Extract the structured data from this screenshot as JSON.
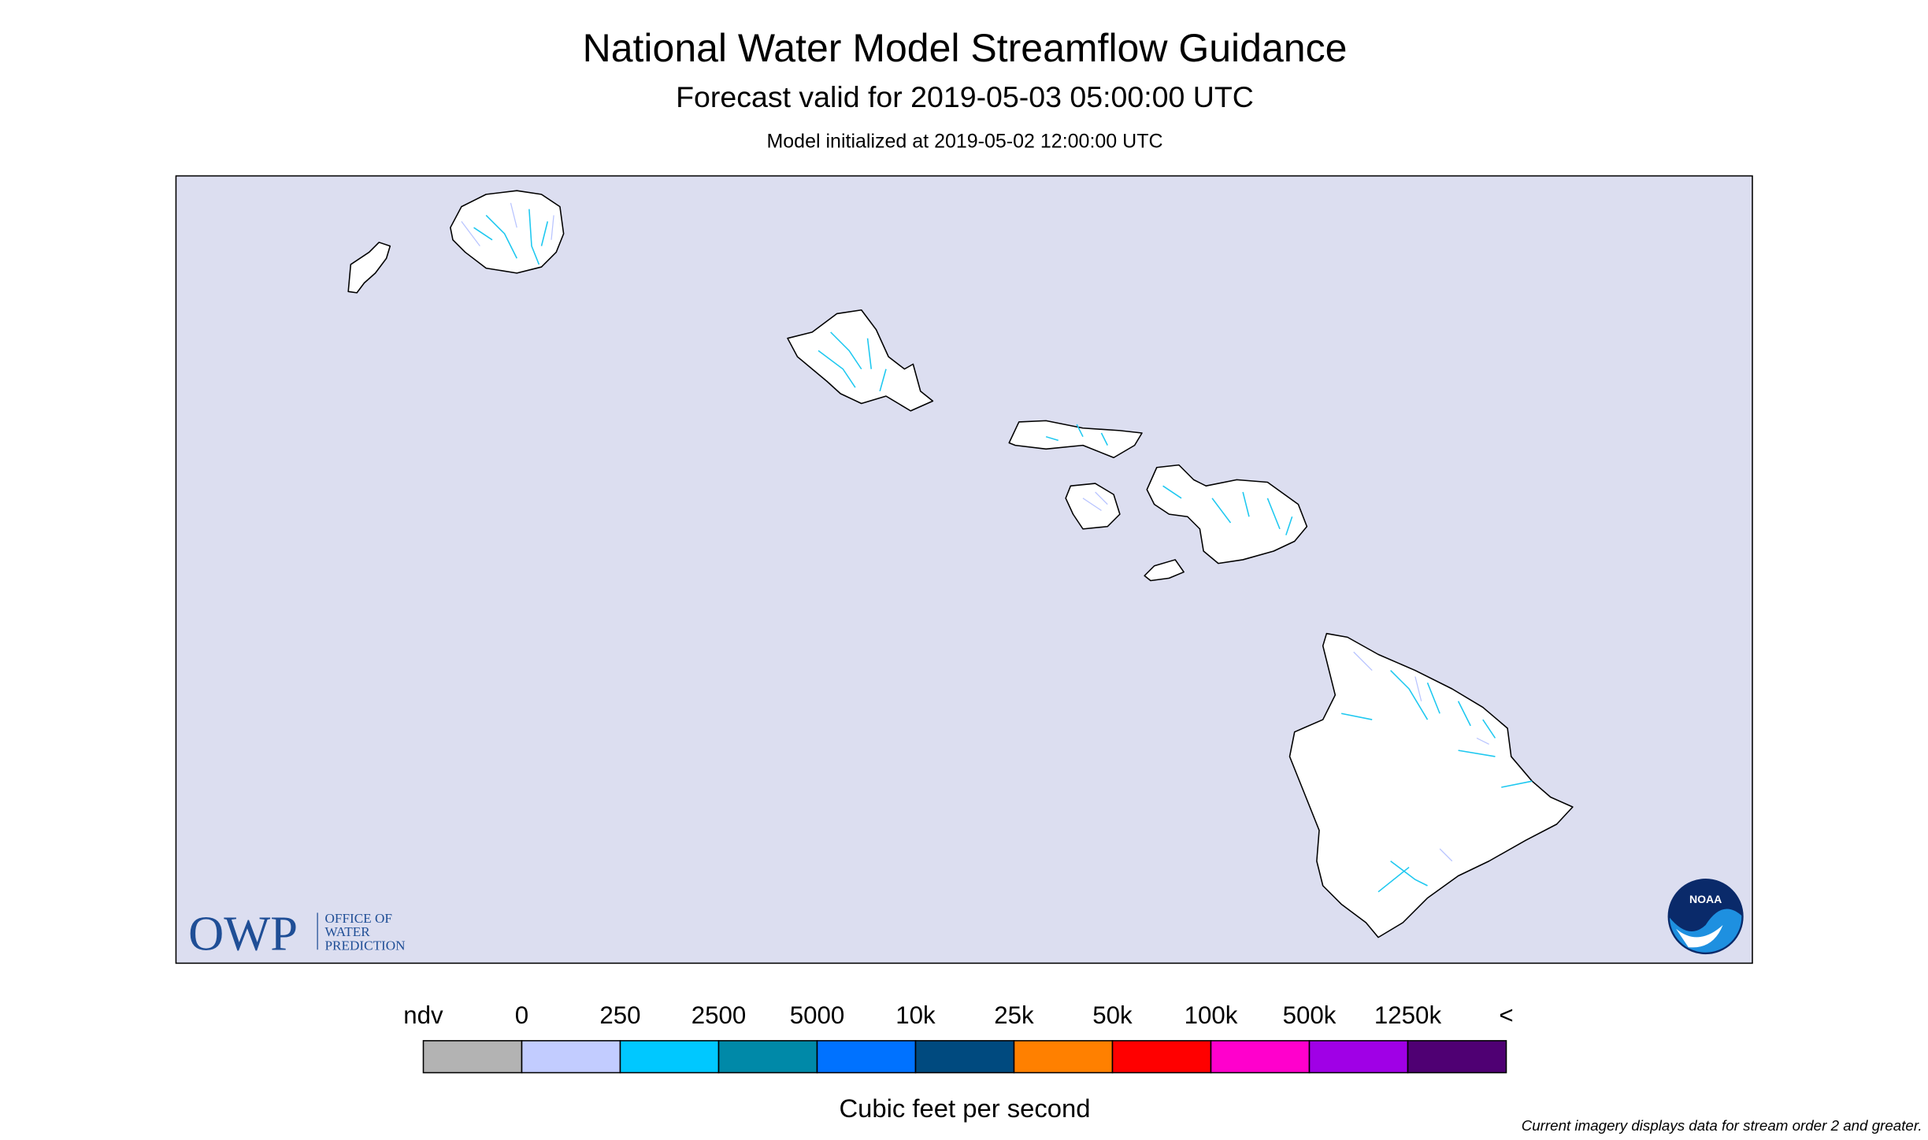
{
  "header": {
    "title": "National Water Model Streamflow Guidance",
    "subtitle": "Forecast valid for 2019-05-03 05:00:00 UTC",
    "initialized": "Model initialized at 2019-05-02 12:00:00 UTC"
  },
  "map": {
    "owp_logo": "OWP",
    "owp_logo_lines": [
      "OFFICE OF",
      "WATER",
      "PREDICTION"
    ],
    "noaa_logo": "NOAA"
  },
  "legend": {
    "labels": [
      "ndv",
      "0",
      "250",
      "2500",
      "5000",
      "10k",
      "25k",
      "50k",
      "100k",
      "500k",
      "1250k",
      "<"
    ],
    "colors": [
      "#b3b3b3",
      "#c2ccff",
      "#00c8ff",
      "#0089a8",
      "#0072ff",
      "#004a7f",
      "#ff8000",
      "#ff0000",
      "#ff00cc",
      "#a000e6",
      "#4f0073"
    ],
    "units": "Cubic feet per second"
  },
  "footnote": "Current imagery displays data for stream order 2 and greater."
}
